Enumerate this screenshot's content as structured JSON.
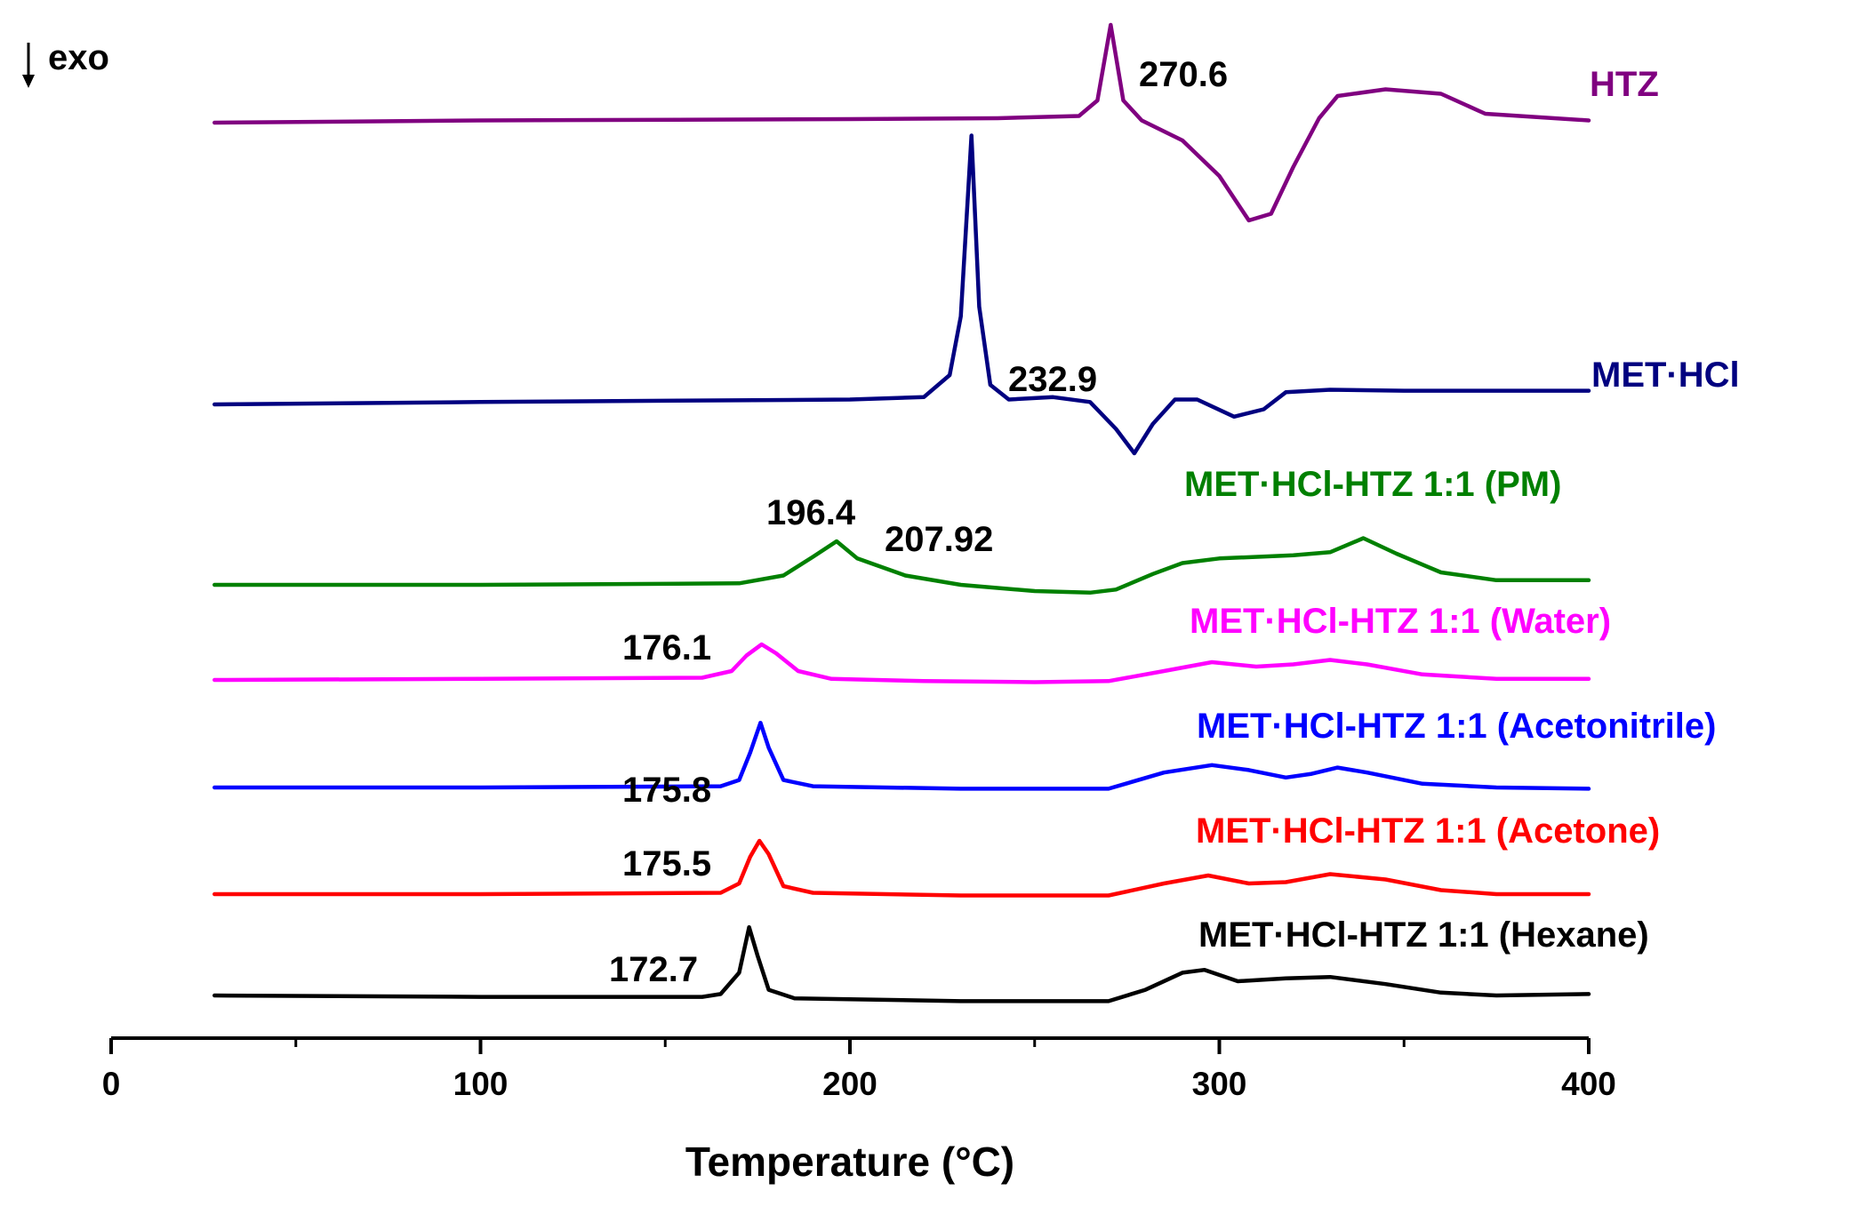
{
  "chart_data": {
    "type": "line",
    "title": "",
    "xlabel": "Temperature (°C)",
    "ylabel": "",
    "xlim": [
      0,
      400
    ],
    "x_ticks": [
      0,
      100,
      200,
      300,
      400
    ],
    "x_tick_labels": [
      "0",
      "100",
      "200",
      "300",
      "400"
    ],
    "minor_tick_step": 50,
    "grid": false,
    "direction_indicator": "exo",
    "series": [
      {
        "name": "HTZ",
        "color": "#800080",
        "peak_label": "270.6",
        "points": [
          [
            28,
            0.0
          ],
          [
            100,
            0.05
          ],
          [
            200,
            0.08
          ],
          [
            240,
            0.1
          ],
          [
            262,
            0.15
          ],
          [
            267,
            0.5
          ],
          [
            270.6,
            2.2
          ],
          [
            274,
            0.5
          ],
          [
            279,
            0.05
          ],
          [
            290,
            -0.4
          ],
          [
            300,
            -1.2
          ],
          [
            308,
            -2.2
          ],
          [
            314,
            -2.05
          ],
          [
            320,
            -1.0
          ],
          [
            327,
            0.1
          ],
          [
            332,
            0.6
          ],
          [
            345,
            0.75
          ],
          [
            360,
            0.65
          ],
          [
            372,
            0.2
          ],
          [
            400,
            0.05
          ]
        ]
      },
      {
        "name": "MET·HCl",
        "color": "#000080",
        "peak_label": "232.9",
        "points": [
          [
            28,
            0.0
          ],
          [
            100,
            0.05
          ],
          [
            200,
            0.1
          ],
          [
            220,
            0.15
          ],
          [
            227,
            0.6
          ],
          [
            230,
            1.8
          ],
          [
            232.9,
            5.5
          ],
          [
            235,
            2.0
          ],
          [
            238,
            0.4
          ],
          [
            243,
            0.1
          ],
          [
            255,
            0.15
          ],
          [
            265,
            0.05
          ],
          [
            272,
            -0.5
          ],
          [
            277,
            -1.0
          ],
          [
            282,
            -0.4
          ],
          [
            288,
            0.1
          ],
          [
            294,
            0.1
          ],
          [
            304,
            -0.25
          ],
          [
            312,
            -0.1
          ],
          [
            318,
            0.25
          ],
          [
            330,
            0.3
          ],
          [
            350,
            0.28
          ],
          [
            400,
            0.28
          ]
        ]
      },
      {
        "name": "MET·HCl-HTZ 1:1 (PM)",
        "color": "#008000",
        "peak_labels": [
          "196.4",
          "207.92"
        ],
        "points": [
          [
            28,
            0.0
          ],
          [
            100,
            0.0
          ],
          [
            170,
            0.05
          ],
          [
            182,
            0.3
          ],
          [
            190,
            0.9
          ],
          [
            196.4,
            1.4
          ],
          [
            202,
            0.85
          ],
          [
            207.92,
            0.6
          ],
          [
            215,
            0.3
          ],
          [
            230,
            0.0
          ],
          [
            250,
            -0.2
          ],
          [
            265,
            -0.25
          ],
          [
            272,
            -0.15
          ],
          [
            282,
            0.35
          ],
          [
            290,
            0.7
          ],
          [
            300,
            0.85
          ],
          [
            320,
            0.95
          ],
          [
            330,
            1.05
          ],
          [
            339,
            1.5
          ],
          [
            348,
            1.0
          ],
          [
            360,
            0.4
          ],
          [
            375,
            0.15
          ],
          [
            400,
            0.15
          ]
        ]
      },
      {
        "name": "MET·HCl-HTZ 1:1 (Water)",
        "color": "#ff00ff",
        "peak_label": "176.1",
        "points": [
          [
            28,
            0.0
          ],
          [
            100,
            0.05
          ],
          [
            160,
            0.1
          ],
          [
            168,
            0.4
          ],
          [
            172,
            1.1
          ],
          [
            176.1,
            1.6
          ],
          [
            180,
            1.2
          ],
          [
            186,
            0.4
          ],
          [
            195,
            0.05
          ],
          [
            220,
            -0.05
          ],
          [
            250,
            -0.1
          ],
          [
            270,
            -0.05
          ],
          [
            285,
            0.4
          ],
          [
            298,
            0.8
          ],
          [
            310,
            0.6
          ],
          [
            320,
            0.7
          ],
          [
            330,
            0.9
          ],
          [
            340,
            0.7
          ],
          [
            355,
            0.25
          ],
          [
            375,
            0.05
          ],
          [
            400,
            0.05
          ]
        ]
      },
      {
        "name": "MET·HCl-HTZ 1:1 (Acetonitrile)",
        "color": "#0000ff",
        "peak_label": "175.8",
        "points": [
          [
            28,
            0.0
          ],
          [
            100,
            0.0
          ],
          [
            165,
            0.05
          ],
          [
            170,
            0.3
          ],
          [
            173,
            1.4
          ],
          [
            175.8,
            2.6
          ],
          [
            178,
            1.6
          ],
          [
            182,
            0.3
          ],
          [
            190,
            0.05
          ],
          [
            230,
            -0.05
          ],
          [
            270,
            -0.05
          ],
          [
            285,
            0.6
          ],
          [
            298,
            0.9
          ],
          [
            308,
            0.7
          ],
          [
            318,
            0.4
          ],
          [
            325,
            0.55
          ],
          [
            332,
            0.8
          ],
          [
            340,
            0.6
          ],
          [
            355,
            0.15
          ],
          [
            375,
            0.0
          ],
          [
            400,
            -0.05
          ]
        ]
      },
      {
        "name": "MET·HCl-HTZ 1:1 (Acetone)",
        "color": "#ff0000",
        "peak_label": "175.5",
        "points": [
          [
            28,
            0.0
          ],
          [
            100,
            0.0
          ],
          [
            165,
            0.05
          ],
          [
            170,
            0.4
          ],
          [
            173,
            1.4
          ],
          [
            175.5,
            2.0
          ],
          [
            178,
            1.5
          ],
          [
            182,
            0.3
          ],
          [
            190,
            0.05
          ],
          [
            230,
            -0.05
          ],
          [
            270,
            -0.05
          ],
          [
            285,
            0.4
          ],
          [
            297,
            0.7
          ],
          [
            308,
            0.4
          ],
          [
            318,
            0.45
          ],
          [
            330,
            0.75
          ],
          [
            345,
            0.55
          ],
          [
            360,
            0.15
          ],
          [
            375,
            0.0
          ],
          [
            400,
            0.0
          ]
        ]
      },
      {
        "name": "MET·HCl-HTZ 1:1 (Hexane)",
        "color": "#000000",
        "peak_label": "172.7",
        "points": [
          [
            28,
            0.0
          ],
          [
            100,
            -0.05
          ],
          [
            160,
            -0.05
          ],
          [
            165,
            0.05
          ],
          [
            170,
            0.8
          ],
          [
            172.7,
            2.4
          ],
          [
            175,
            1.4
          ],
          [
            178,
            0.2
          ],
          [
            185,
            -0.1
          ],
          [
            230,
            -0.2
          ],
          [
            270,
            -0.2
          ],
          [
            280,
            0.2
          ],
          [
            290,
            0.8
          ],
          [
            296,
            0.9
          ],
          [
            305,
            0.5
          ],
          [
            318,
            0.6
          ],
          [
            330,
            0.65
          ],
          [
            345,
            0.4
          ],
          [
            360,
            0.1
          ],
          [
            375,
            0.0
          ],
          [
            400,
            0.05
          ]
        ]
      }
    ]
  }
}
